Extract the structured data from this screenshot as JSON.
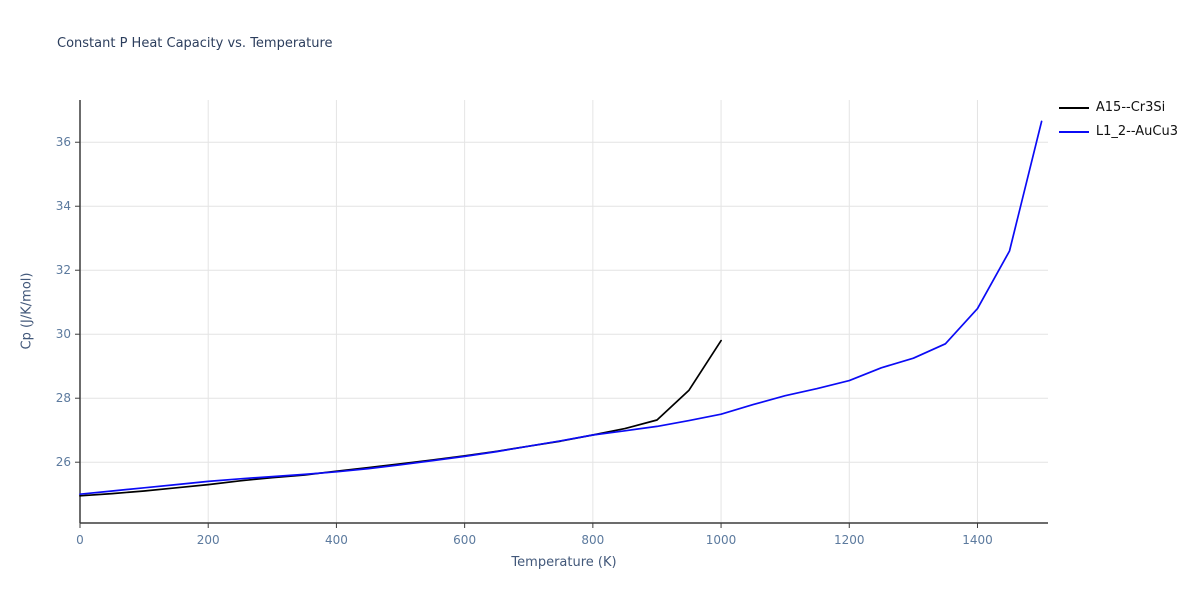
{
  "chart_data": {
    "type": "line",
    "title": "Constant P Heat Capacity vs. Temperature",
    "xlabel": "Temperature (K)",
    "ylabel": "Cp (J/K/mol)",
    "xlim": [
      0,
      1510
    ],
    "ylim": [
      24.1,
      37.32
    ],
    "xticks": [
      0,
      200,
      400,
      600,
      800,
      1000,
      1200,
      1400
    ],
    "yticks": [
      26,
      28,
      30,
      32,
      34,
      36
    ],
    "grid": true,
    "legend_position": "top-right-outside",
    "series": [
      {
        "name": "A15--Cr3Si",
        "color": "#000000",
        "x": [
          0,
          50,
          100,
          150,
          200,
          250,
          300,
          350,
          400,
          450,
          500,
          550,
          600,
          650,
          700,
          750,
          800,
          850,
          900,
          950,
          1000
        ],
        "y": [
          24.95,
          25.02,
          25.1,
          25.2,
          25.3,
          25.42,
          25.52,
          25.6,
          25.72,
          25.83,
          25.95,
          26.07,
          26.2,
          26.34,
          26.5,
          26.66,
          26.85,
          27.05,
          27.32,
          28.25,
          29.8
        ]
      },
      {
        "name": "L1_2--AuCu3",
        "color": "#0b0bf5",
        "x": [
          0,
          50,
          100,
          150,
          200,
          250,
          300,
          350,
          400,
          450,
          500,
          550,
          600,
          650,
          700,
          750,
          800,
          850,
          900,
          950,
          1000,
          1050,
          1100,
          1150,
          1200,
          1250,
          1300,
          1350,
          1400,
          1450,
          1500
        ],
        "y": [
          25.0,
          25.1,
          25.2,
          25.3,
          25.4,
          25.48,
          25.55,
          25.62,
          25.7,
          25.8,
          25.92,
          26.05,
          26.18,
          26.33,
          26.5,
          26.67,
          26.85,
          26.98,
          27.12,
          27.3,
          27.5,
          27.8,
          28.08,
          28.3,
          28.55,
          28.95,
          29.25,
          29.7,
          30.8,
          32.6,
          36.65
        ]
      }
    ]
  },
  "colors": {
    "grid": "#e4e4e4",
    "spine": "#3c3c3c",
    "tick": "#5c7a9e",
    "background": "#ffffff"
  }
}
